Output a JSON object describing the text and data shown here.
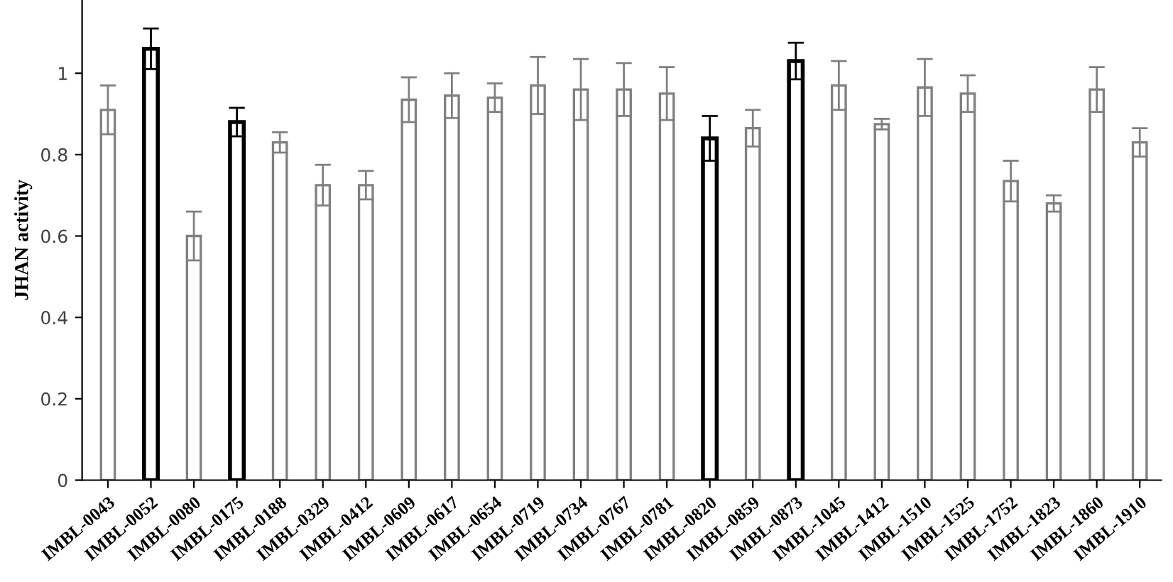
{
  "chart_data": {
    "type": "bar",
    "ylabel": "JHAN activity",
    "categories": [
      "IMBL-0043",
      "IMBL-0052",
      "IMBL-0080",
      "IMBL-0175",
      "IMBL-0188",
      "IMBL-0329",
      "IMBL-0412",
      "IMBL-0609",
      "IMBL-0617",
      "IMBL-0654",
      "IMBL-0719",
      "IMBL-0734",
      "IMBL-0767",
      "IMBL-0781",
      "IMBL-0820",
      "IMBL-0859",
      "IMBL-0873",
      "IMBL-1045",
      "IMBL-1412",
      "IMBL-1510",
      "IMBL-1525",
      "IMBL-1752",
      "IMBL-1823",
      "IMBL-1860",
      "IMBL-1910"
    ],
    "values": [
      0.91,
      1.06,
      0.6,
      0.88,
      0.83,
      0.725,
      0.725,
      0.935,
      0.945,
      0.94,
      0.97,
      0.96,
      0.96,
      0.95,
      0.84,
      0.865,
      1.03,
      0.97,
      0.875,
      0.965,
      0.95,
      0.735,
      0.68,
      0.96,
      0.83
    ],
    "errors": [
      0.06,
      0.05,
      0.06,
      0.035,
      0.025,
      0.05,
      0.035,
      0.055,
      0.055,
      0.035,
      0.07,
      0.075,
      0.065,
      0.065,
      0.055,
      0.045,
      0.045,
      0.06,
      0.013,
      0.07,
      0.045,
      0.05,
      0.02,
      0.055,
      0.035
    ],
    "colors": [
      "#808080",
      "#000000",
      "#808080",
      "#000000",
      "#808080",
      "#808080",
      "#808080",
      "#808080",
      "#808080",
      "#808080",
      "#808080",
      "#808080",
      "#808080",
      "#808080",
      "#000000",
      "#808080",
      "#000000",
      "#808080",
      "#808080",
      "#808080",
      "#808080",
      "#808080",
      "#808080",
      "#808080",
      "#808080"
    ],
    "ylim": [
      0,
      1.18
    ],
    "yticks": [
      0,
      0.2,
      0.4,
      0.6,
      0.8,
      1
    ],
    "grid": false,
    "legend": false
  }
}
